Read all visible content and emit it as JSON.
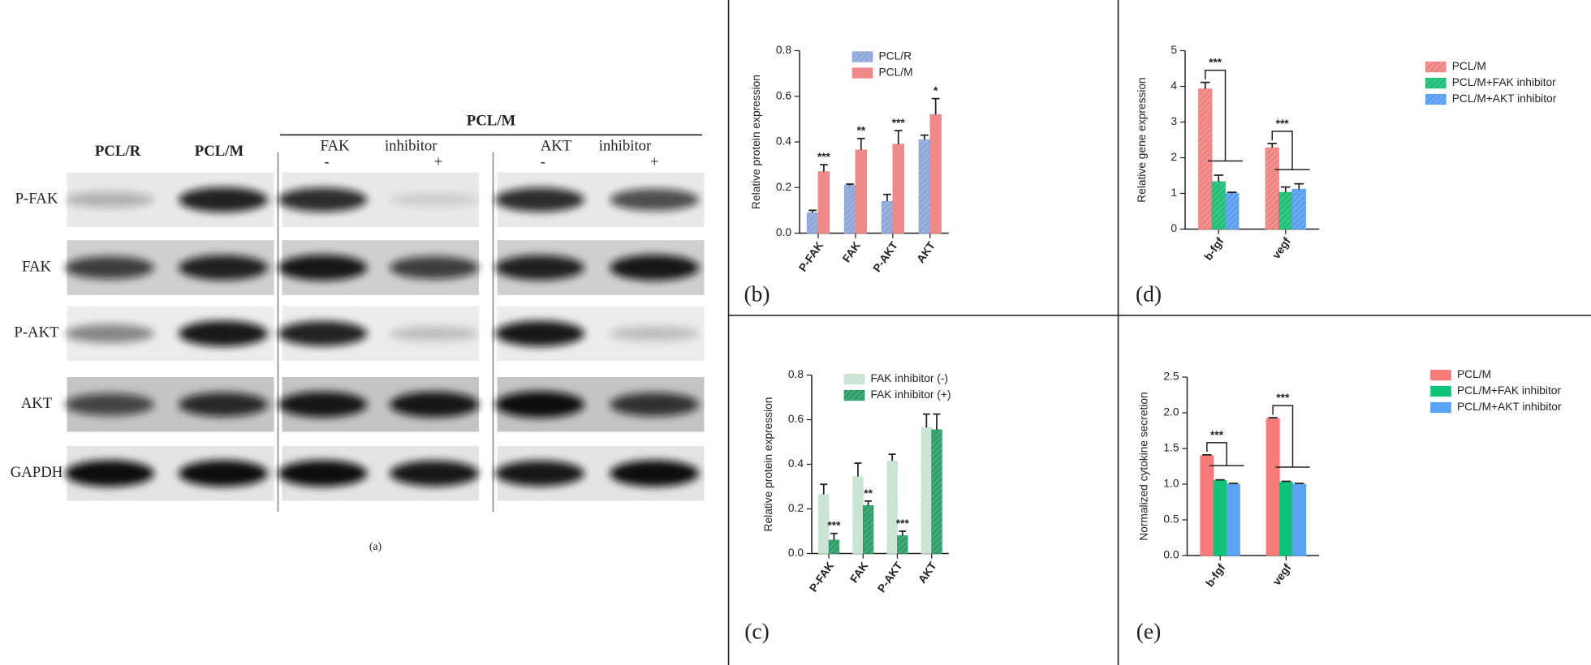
{
  "blot": {
    "group_header": "PCL/M",
    "lanes": [
      "PCL/R",
      "PCL/M"
    ],
    "fak_header": [
      "FAK",
      "inhibitor"
    ],
    "akt_header": [
      "AKT",
      "inhibitor"
    ],
    "signs": [
      "-",
      "+"
    ],
    "rows": [
      "P-FAK",
      "FAK",
      "P-AKT",
      "AKT",
      "GAPDH"
    ],
    "label": "(a)"
  },
  "panel_labels": [
    "(b)",
    "(c)",
    "(d)",
    "(e)"
  ],
  "chart_data": [
    {
      "type": "bar",
      "y_label": "Relative protein expression",
      "categories": [
        "P-FAK",
        "FAK",
        "P-AKT",
        "AKT"
      ],
      "series": [
        {
          "name": "PCL/R",
          "color": "#8fa8d8",
          "pattern": true,
          "values": [
            0.09,
            0.21,
            0.14,
            0.41
          ],
          "errors": [
            0.01,
            0.005,
            0.03,
            0.02
          ]
        },
        {
          "name": "PCL/M",
          "color": "#ef8a8a",
          "pattern": false,
          "values": [
            0.27,
            0.365,
            0.39,
            0.52
          ],
          "errors": [
            0.03,
            0.05,
            0.06,
            0.07
          ]
        }
      ],
      "significance": [
        "***",
        "**",
        "***",
        "*"
      ],
      "significance_style": "star",
      "ylim": [
        0,
        0.8
      ],
      "yticks": [
        {
          "value": 0,
          "label": "0.0"
        },
        0.2,
        0.4,
        0.6,
        0.8
      ]
    },
    {
      "type": "bar",
      "y_label": "Relative protein expression",
      "categories": [
        "P-FAK",
        "FAK",
        "P-AKT",
        "AKT"
      ],
      "series": [
        {
          "name": "FAK inhibitor (-)",
          "color": "#c9e3d3",
          "pattern": true,
          "values": [
            0.265,
            0.345,
            0.415,
            0.565
          ],
          "errors": [
            0.045,
            0.06,
            0.03,
            0.06
          ]
        },
        {
          "name": "FAK inhibitor (+)",
          "color": "#2e9e6a",
          "pattern": true,
          "values": [
            0.06,
            0.215,
            0.08,
            0.555
          ],
          "errors": [
            0.03,
            0.02,
            0.02,
            0.07
          ]
        }
      ],
      "significance": [
        "***",
        "**",
        "***",
        null
      ],
      "significance_style": "star",
      "ylim": [
        0,
        0.8
      ],
      "yticks": [
        {
          "value": 0,
          "label": "0.0"
        },
        0.2,
        0.4,
        0.6,
        0.8
      ]
    },
    {
      "type": "bar",
      "y_label": "Relative gene  expression",
      "categories": [
        "b-fgf",
        "vegf"
      ],
      "series": [
        {
          "name": "PCL/M",
          "color": "#ee8583",
          "pattern": true,
          "values": [
            3.93,
            2.28
          ],
          "errors": [
            0.18,
            0.12
          ]
        },
        {
          "name": "PCL/M+FAK inhibitor",
          "color": "#21bf78",
          "pattern": true,
          "values": [
            1.33,
            1.03
          ],
          "errors": [
            0.18,
            0.15
          ]
        },
        {
          "name": "PCL/M+AKT inhibitor",
          "color": "#5b9ff0",
          "pattern": true,
          "values": [
            1.0,
            1.12
          ],
          "errors": [
            0.03,
            0.15
          ]
        }
      ],
      "significance": [
        "***",
        "***"
      ],
      "significance_style": "bracket",
      "ylim": [
        0,
        5
      ],
      "yticks": [
        0,
        1,
        2,
        3,
        4,
        5
      ]
    },
    {
      "type": "bar",
      "y_label": "Normalized cytokine secretion",
      "categories": [
        "b-fgf",
        "vegf"
      ],
      "series": [
        {
          "name": "PCL/M",
          "color": "#f77b7b",
          "pattern": false,
          "values": [
            1.4,
            1.92
          ],
          "errors": [
            0.01,
            0.01
          ]
        },
        {
          "name": "PCL/M+FAK inhibitor",
          "color": "#10c27a",
          "pattern": false,
          "values": [
            1.05,
            1.03
          ],
          "errors": [
            0.01,
            0.01
          ]
        },
        {
          "name": "PCL/M+AKT inhibitor",
          "color": "#5aa3f5",
          "pattern": false,
          "values": [
            1.0,
            1.0
          ],
          "errors": [
            0.01,
            0.01
          ]
        }
      ],
      "significance": [
        "***",
        "***"
      ],
      "significance_style": "bracket",
      "ylim": [
        0,
        2.5
      ],
      "yticks": [
        {
          "value": 0,
          "label": "0.0"
        },
        0.5,
        {
          "value": 1,
          "label": "1.0"
        },
        1.5,
        {
          "value": 2,
          "label": "2.0"
        },
        2.5
      ]
    }
  ]
}
